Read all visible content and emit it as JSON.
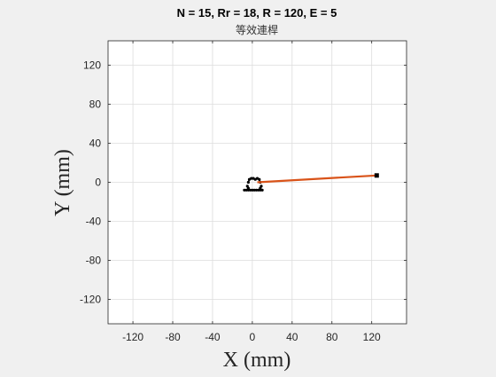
{
  "chart_data": {
    "type": "line",
    "title": "N = 15, Rr = 18, R = 120, E = 5",
    "subtitle": "等效連桿",
    "xlabel": "X (mm)",
    "ylabel": "Y (mm)",
    "xlim": [
      -145,
      155
    ],
    "ylim": [
      -145,
      145
    ],
    "xticks": [
      -120,
      -80,
      -40,
      0,
      40,
      80,
      120
    ],
    "yticks": [
      120,
      80,
      40,
      0,
      -40,
      -80,
      -120
    ],
    "xtick_labels": [
      "-120",
      "-80",
      "-40",
      "0",
      "40",
      "80",
      "120"
    ],
    "ytick_labels": [
      "120",
      "80",
      "40",
      "0",
      "-40",
      "-80",
      "-120"
    ],
    "grid": true,
    "series": [
      {
        "color": "#d95319",
        "x": [
          5,
          125
        ],
        "y": [
          0,
          7
        ]
      }
    ],
    "endpoint_marker": {
      "x": 125,
      "y": 7,
      "color": "#000000"
    },
    "cycloid_cluster": {
      "color": "#000000",
      "center": [
        2,
        -2
      ],
      "points": [
        [
          -8,
          -8
        ],
        [
          -6,
          -8
        ],
        [
          -4,
          -8
        ],
        [
          -2,
          -8
        ],
        [
          0,
          -8
        ],
        [
          2,
          -8
        ],
        [
          4,
          -8
        ],
        [
          6,
          -8
        ],
        [
          8,
          -8
        ],
        [
          10,
          -8
        ],
        [
          -4,
          0
        ],
        [
          -3,
          3
        ],
        [
          -1,
          4
        ],
        [
          1,
          4
        ],
        [
          3,
          3
        ],
        [
          5,
          4
        ],
        [
          7,
          3
        ],
        [
          8,
          0
        ],
        [
          -5,
          -4
        ],
        [
          9,
          -4
        ],
        [
          -4,
          -6
        ],
        [
          8,
          -6
        ]
      ]
    }
  }
}
